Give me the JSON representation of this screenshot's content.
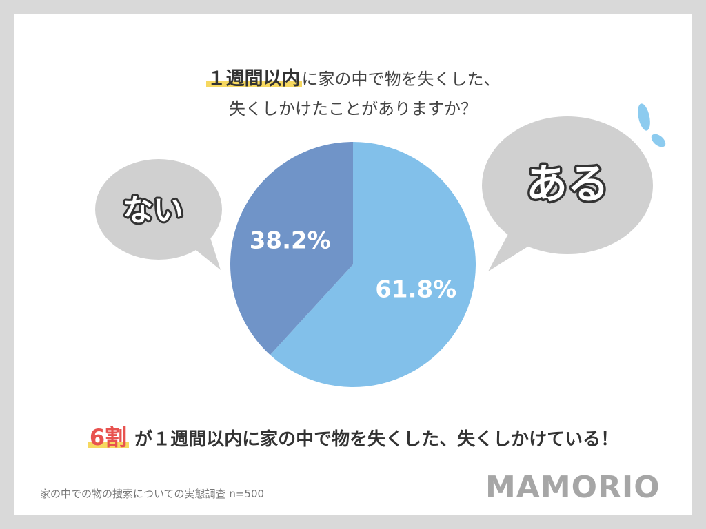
{
  "title": {
    "highlight": "１週間以内",
    "line1_rest": "に家の中で物を失くした、",
    "line2": "失くしかけたことがありますか？"
  },
  "chart_data": {
    "type": "pie",
    "slices": [
      {
        "label": "ある",
        "value": 61.8,
        "value_label": "61.8%",
        "color": "#82c0ea"
      },
      {
        "label": "ない",
        "value": 38.2,
        "value_label": "38.2%",
        "color": "#7094c8"
      }
    ],
    "unit": "%",
    "start_angle": "12 o'clock",
    "direction": "clockwise"
  },
  "conclusion": {
    "highlight": "6割",
    "text": "が１週間以内に家の中で物を失くした、失くしかけている！"
  },
  "footnote": "家の中での物の捜索についての実態調査 n=500",
  "brand": "MAMORIO",
  "colors": {
    "bubble": "#d0d0d0",
    "accent_yellow": "#f6d860",
    "accent_red": "#e8524f",
    "drops": "#8ccbef"
  }
}
